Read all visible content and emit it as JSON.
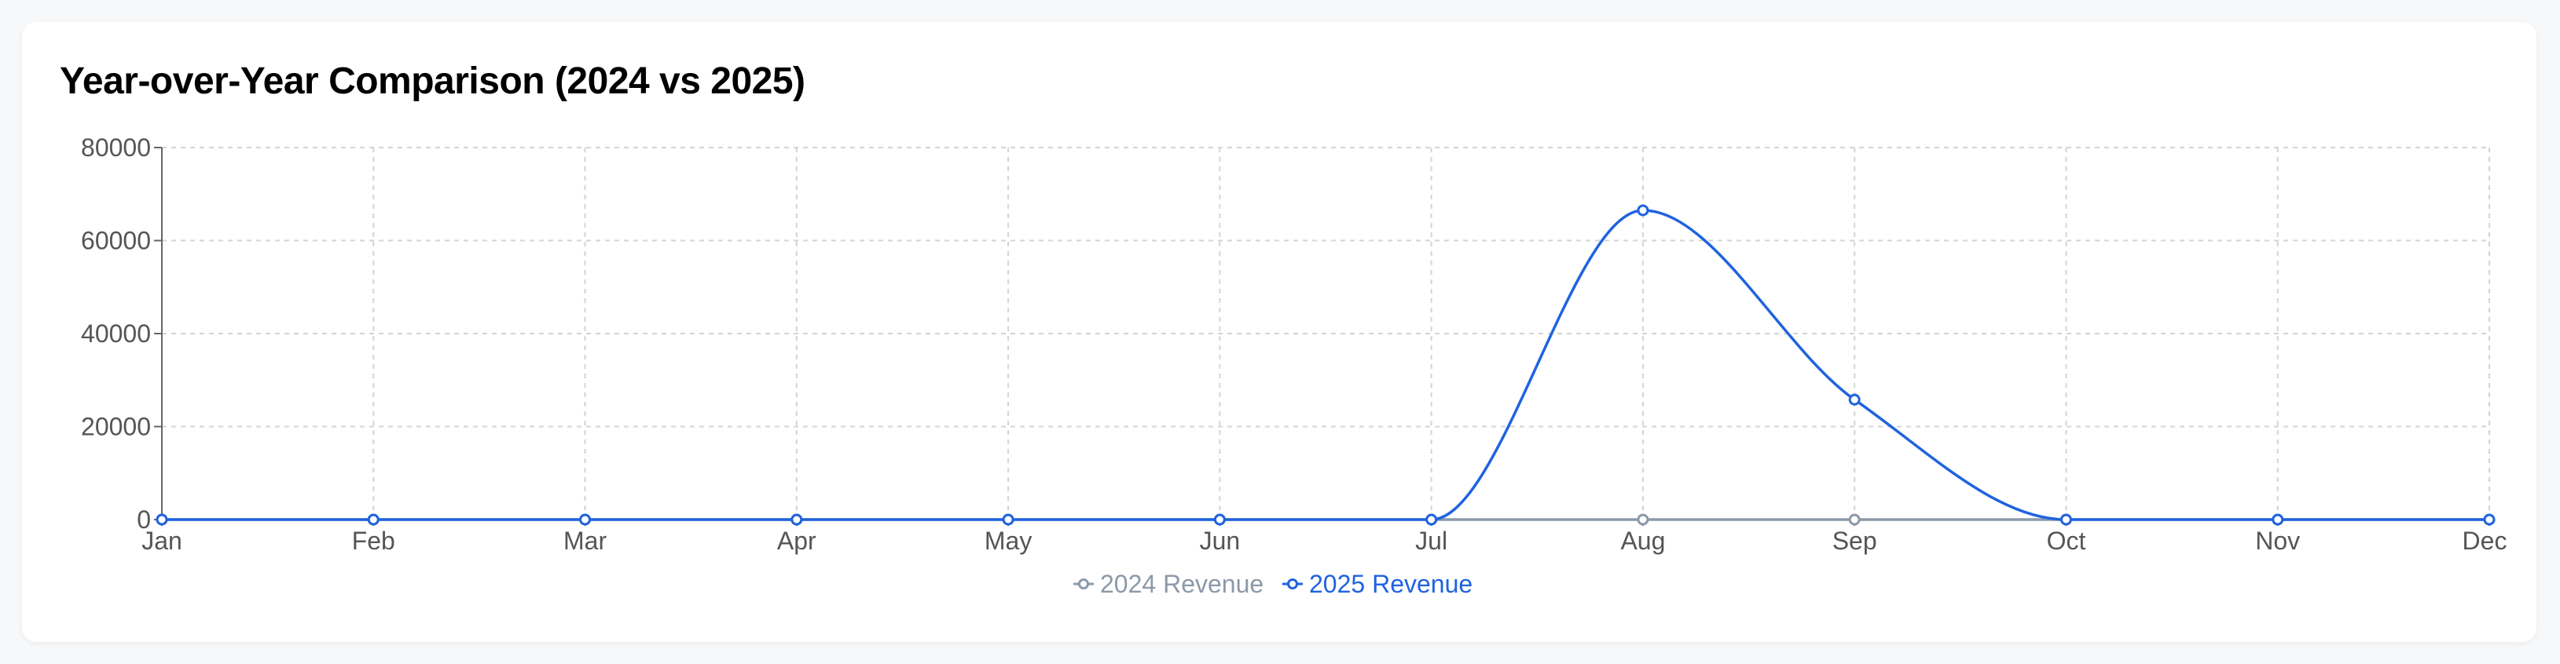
{
  "card": {
    "title": "Year-over-Year Comparison (2024 vs 2025)"
  },
  "colors": {
    "series_2024": "#8c99a8",
    "series_2025": "#1f63e0",
    "grid": "#d4d4d4",
    "axis": "#666666"
  },
  "chart_data": {
    "type": "line",
    "title": "Year-over-Year Comparison (2024 vs 2025)",
    "categories": [
      "Jan",
      "Feb",
      "Mar",
      "Apr",
      "May",
      "Jun",
      "Jul",
      "Aug",
      "Sep",
      "Oct",
      "Nov",
      "Dec"
    ],
    "yticks": [
      0,
      20000,
      40000,
      60000,
      80000
    ],
    "ylim": [
      0,
      80000
    ],
    "grid": true,
    "legend_position": "bottom-center",
    "series": [
      {
        "name": "2024 Revenue",
        "values": [
          0,
          0,
          0,
          0,
          0,
          0,
          0,
          0,
          0,
          0,
          0,
          0
        ]
      },
      {
        "name": "2025 Revenue",
        "values": [
          0,
          0,
          0,
          0,
          0,
          0,
          0,
          66500,
          25800,
          0,
          0,
          0
        ]
      }
    ]
  }
}
